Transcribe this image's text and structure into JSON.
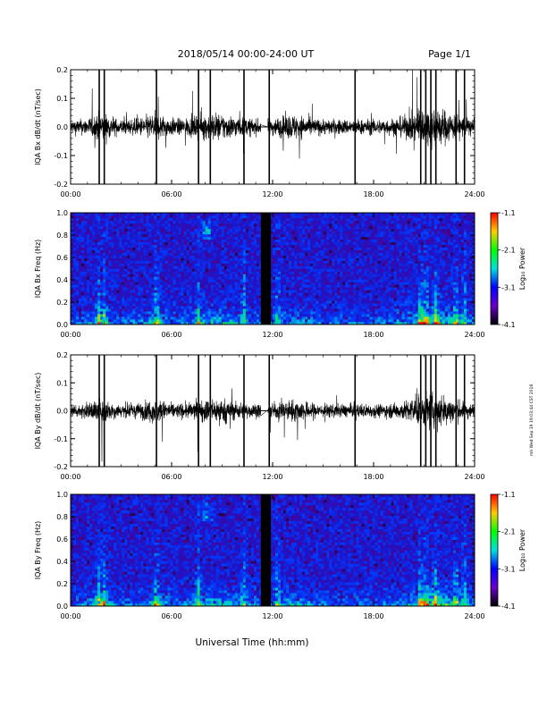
{
  "header": {
    "title": "2018/05/14  00:00-24:00 UT",
    "page": "Page 1/1"
  },
  "footer": {
    "xlabel": "Universal Time (hh:mm)",
    "stamp": "rnh Wed Sep 19 19:03:44 CST 2018"
  },
  "colorbar": {
    "label": "Log₁₀ Power",
    "ticks": [
      "-1.1",
      "-2.1",
      "-3.1",
      "-4.1"
    ],
    "colors": [
      "#ff0000",
      "#ffcc00",
      "#00ff00",
      "#00dddd",
      "#0000ff",
      "#6a00c8",
      "#000000"
    ]
  },
  "chart_data": [
    {
      "type": "line",
      "name": "bx-dbdt",
      "ylabel": "IQA Bx dB/dt (nT/sec)",
      "xlim": [
        0,
        24
      ],
      "ylim": [
        -0.2,
        0.2
      ],
      "yticks": [
        "0.2",
        "0.1",
        "0.0",
        "-0.1",
        "-0.2"
      ],
      "xticks": [
        "00:00",
        "06:00",
        "12:00",
        "18:00",
        "24:00"
      ],
      "data_gap_hours": [
        11.3,
        11.7
      ],
      "spikes_hours": [
        1.7,
        2.0,
        5.1,
        7.6,
        8.3,
        10.3,
        11.8,
        16.9,
        20.8,
        21.1,
        21.4,
        21.7,
        22.9,
        23.4
      ]
    },
    {
      "type": "heatmap",
      "name": "bx-spectrogram",
      "ylabel": "IQA Bx Freq (Hz)",
      "xlim": [
        0,
        24
      ],
      "ylim": [
        0.0,
        1.0
      ],
      "yticks": [
        "1.0",
        "0.8",
        "0.6",
        "0.4",
        "0.2",
        "0.0"
      ],
      "xticks": [
        "00:00",
        "06:00",
        "12:00",
        "18:00",
        "24:00"
      ],
      "zlim": [
        -4.1,
        -1.1
      ],
      "data_gap_hours": [
        11.3,
        11.9
      ]
    },
    {
      "type": "line",
      "name": "by-dbdt",
      "ylabel": "IQA By dB/dt (nT/sec)",
      "xlim": [
        0,
        24
      ],
      "ylim": [
        -0.2,
        0.2
      ],
      "yticks": [
        "0.2",
        "0.1",
        "0.0",
        "-0.1",
        "-0.2"
      ],
      "xticks": [
        "00:00",
        "06:00",
        "12:00",
        "18:00",
        "24:00"
      ],
      "data_gap_hours": [
        11.3,
        11.7
      ],
      "spikes_hours": [
        1.7,
        2.0,
        5.1,
        7.6,
        8.3,
        10.3,
        11.8,
        16.9,
        20.8,
        21.1,
        21.4,
        21.7,
        22.9,
        23.4
      ]
    },
    {
      "type": "heatmap",
      "name": "by-spectrogram",
      "ylabel": "IQA By Freq (Hz)",
      "xlim": [
        0,
        24
      ],
      "ylim": [
        0.0,
        1.0
      ],
      "yticks": [
        "1.0",
        "0.8",
        "0.6",
        "0.4",
        "0.2",
        "0.0"
      ],
      "xticks": [
        "00:00",
        "06:00",
        "12:00",
        "18:00",
        "24:00"
      ],
      "zlim": [
        -4.1,
        -1.1
      ],
      "data_gap_hours": [
        11.3,
        11.9
      ]
    }
  ]
}
